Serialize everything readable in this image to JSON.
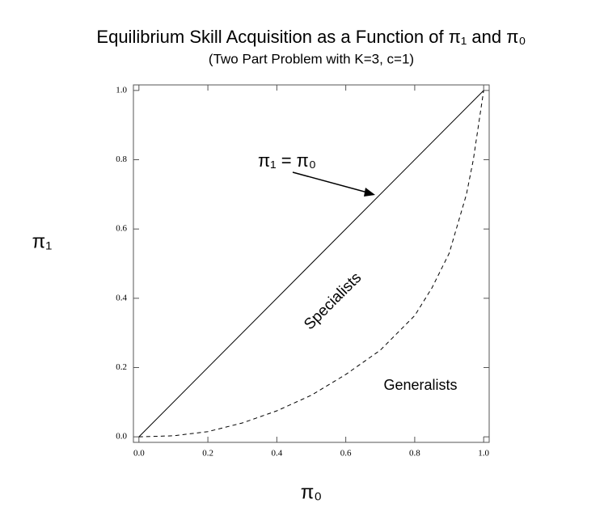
{
  "chart_data": {
    "type": "line",
    "title": "Equilibrium Skill Acquisition as a Function of π₁ and π₀",
    "subtitle": "(Two Part Problem with K=3, c=1)",
    "x_label": "π₀",
    "y_label": "π₁",
    "annotations": [
      "π₁ = π₀",
      "Specialists",
      "Generalists"
    ],
    "series": [
      {
        "color": "#000000",
        "style": "solid",
        "x": [
          0,
          1
        ],
        "values": [
          0,
          1
        ]
      },
      {
        "color": "#000000",
        "style": "dashed",
        "x": [
          0,
          0.1,
          0.2,
          0.3,
          0.4,
          0.5,
          0.6,
          0.7,
          0.8,
          0.85,
          0.9,
          0.95,
          0.97,
          1.0
        ],
        "values": [
          0,
          0.003,
          0.015,
          0.04,
          0.075,
          0.12,
          0.18,
          0.25,
          0.35,
          0.43,
          0.53,
          0.7,
          0.8,
          1.0
        ]
      }
    ],
    "xlim": [
      -0.016,
      1.016
    ],
    "ylim": [
      -0.016,
      1.016
    ],
    "xticks": [
      {
        "value": 0,
        "label": "0.0"
      },
      0.2,
      0.4,
      0.6,
      0.8,
      {
        "value": 1,
        "label": "1.0"
      }
    ],
    "yticks": [
      {
        "value": 0,
        "label": "0.0"
      },
      0.2,
      0.4,
      0.6,
      0.8,
      {
        "value": 1,
        "label": "1.0"
      }
    ],
    "grid": false
  }
}
